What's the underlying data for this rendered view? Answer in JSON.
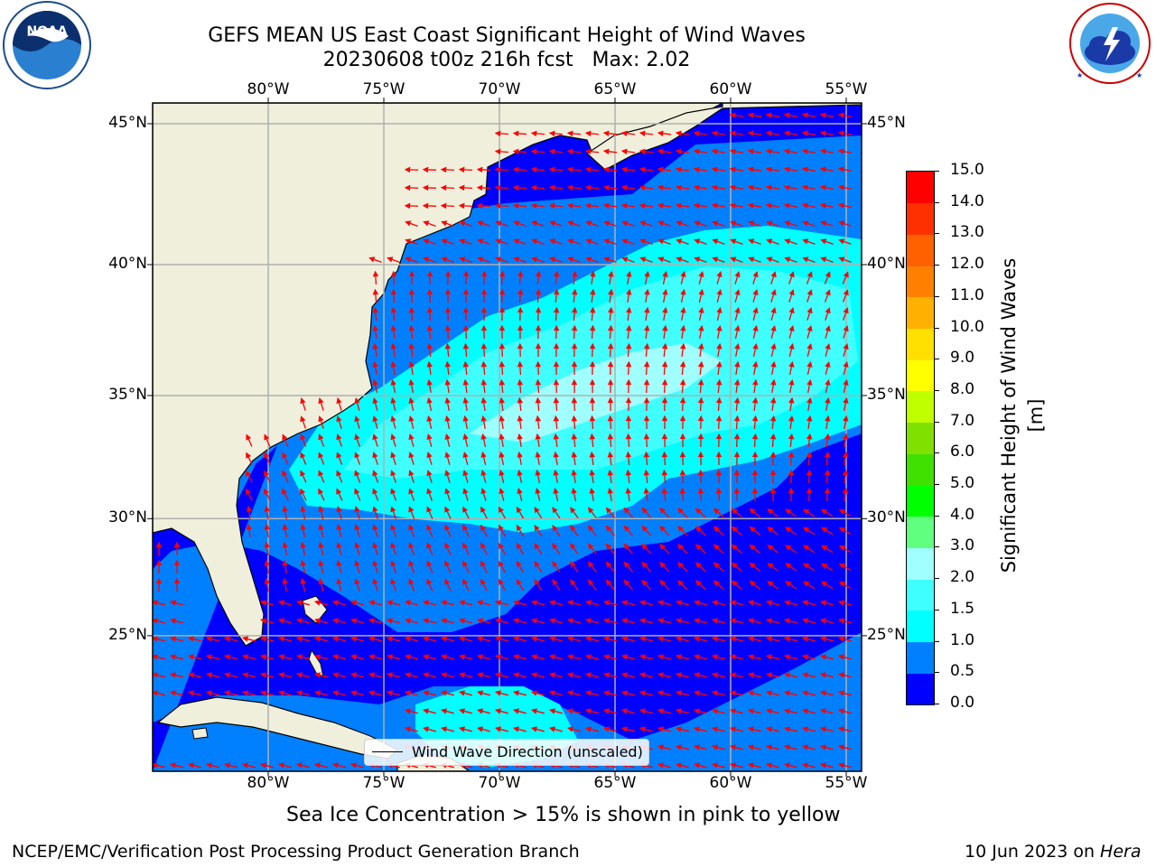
{
  "title": {
    "line1": "GEFS MEAN US East Coast Significant Height of Wind Waves",
    "line2": "20230608 t00z 216h fcst   Max: 2.02"
  },
  "logos": {
    "left": {
      "name": "noaa-logo",
      "text": "NOAA",
      "ring_text": "NATIONAL OCEANIC AND ATMOSPHERIC ADMINISTRATION · U.S. DEPARTMENT OF COMMERCE"
    },
    "right": {
      "name": "nws-logo",
      "ring_text": "NATIONAL WEATHER SERVICE"
    }
  },
  "map": {
    "lon_labels": [
      "80°W",
      "75°W",
      "70°W",
      "65°W",
      "60°W",
      "55°W"
    ],
    "lat_labels": [
      "45°N",
      "40°N",
      "35°N",
      "30°N",
      "25°N"
    ],
    "lon_values": [
      -80,
      -75,
      -70,
      -65,
      -60,
      -55
    ],
    "lat_values": [
      45,
      40,
      35,
      30,
      25
    ],
    "legend_text": "Wind Wave Direction (unscaled)",
    "arrow_color": "#ff0000",
    "land_color": "#efefdc",
    "grid_color": "#b0b0b0"
  },
  "colorbar": {
    "label": "Significant Height of Wind Waves [m]",
    "ticks": [
      "15.0",
      "14.0",
      "13.0",
      "12.0",
      "11.0",
      "10.0",
      "9.0",
      "8.0",
      "7.0",
      "6.0",
      "5.0",
      "4.0",
      "3.0",
      "2.0",
      "1.5",
      "1.0",
      "0.5",
      "0.0"
    ],
    "colors_bottom_to_top": [
      "#0000ff",
      "#0080ff",
      "#00ffff",
      "#40ffff",
      "#a0ffff",
      "#60ff80",
      "#00ff00",
      "#40e000",
      "#80e000",
      "#c0ff00",
      "#ffff00",
      "#ffe000",
      "#ffb000",
      "#ff8000",
      "#ff6000",
      "#ff3000",
      "#ff0000"
    ]
  },
  "notes": {
    "sea_ice": "Sea Ice Concentration > 15% is shown in pink to yellow",
    "credit": "NCEP/EMC/Verification Post Processing Product Generation Branch",
    "date_prefix": "10 Jun 2023 on ",
    "date_machine": "Hera"
  }
}
